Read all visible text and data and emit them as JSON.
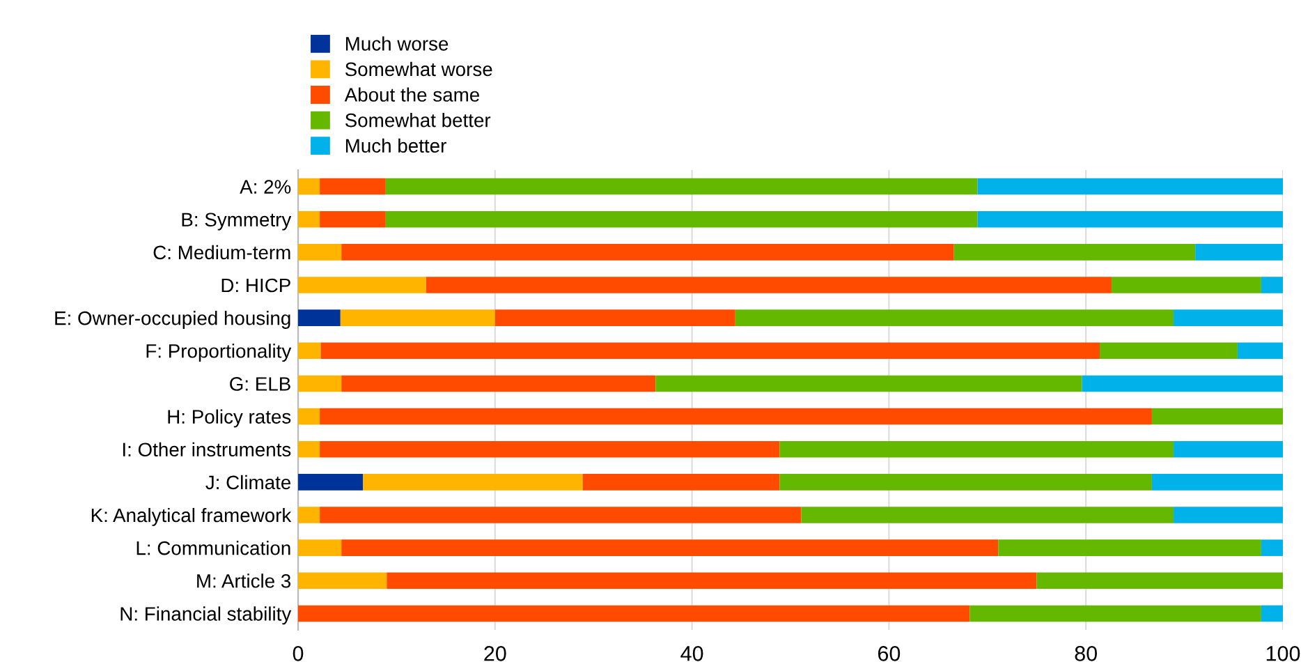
{
  "chart_data": {
    "type": "bar",
    "orientation": "horizontal",
    "stacked": true,
    "categories": [
      "A: 2%",
      "B: Symmetry",
      "C: Medium-term",
      "D: HICP",
      "E: Owner-occupied housing",
      "F: Proportionality",
      "G: ELB",
      "H: Policy rates",
      "I: Other instruments",
      "J: Climate",
      "K: Analytical framework",
      "L: Communication",
      "M: Article 3",
      "N: Financial stability"
    ],
    "series": [
      {
        "name": "Much worse",
        "color": "#003399",
        "values": [
          0,
          0,
          0,
          0,
          4.3,
          0,
          0,
          0,
          0,
          6.6,
          0,
          0,
          0,
          0
        ]
      },
      {
        "name": "Somewhat worse",
        "color": "#ffb400",
        "values": [
          2.2,
          2.2,
          4.4,
          13.0,
          15.7,
          2.3,
          4.4,
          2.2,
          2.2,
          22.3,
          2.2,
          4.4,
          9.0,
          0
        ]
      },
      {
        "name": "About the same",
        "color": "#ff4b00",
        "values": [
          6.7,
          6.7,
          62.2,
          69.6,
          24.4,
          79.1,
          31.9,
          84.5,
          46.7,
          20.0,
          48.9,
          66.7,
          66.0,
          68.2
        ]
      },
      {
        "name": "Somewhat better",
        "color": "#65b800",
        "values": [
          60.1,
          60.1,
          24.5,
          15.2,
          44.5,
          14.0,
          43.3,
          13.3,
          40.0,
          37.8,
          37.8,
          26.7,
          25.0,
          29.6
        ]
      },
      {
        "name": "Much better",
        "color": "#00b1ea",
        "values": [
          31.0,
          31.0,
          8.9,
          2.2,
          11.1,
          4.6,
          20.4,
          0,
          11.1,
          13.3,
          11.1,
          2.2,
          0,
          2.2
        ]
      }
    ],
    "xlim": [
      0,
      100
    ],
    "xticks": [
      0,
      20,
      40,
      60,
      80,
      100
    ],
    "grid": "x",
    "legend": "top left"
  }
}
